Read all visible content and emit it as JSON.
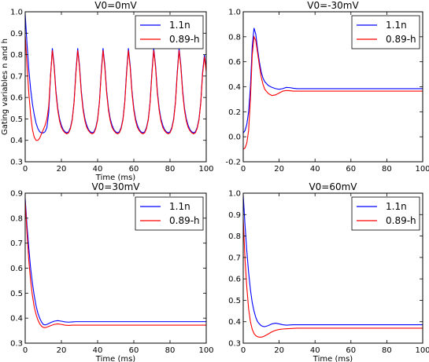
{
  "chart_data": [
    {
      "type": "line",
      "title": "V0=0mV",
      "xlabel": "Time (ms)",
      "ylabel": "Gating variables n and h",
      "xlim": [
        0,
        100
      ],
      "ylim": [
        0.3,
        1.0
      ],
      "xticks": [
        "0",
        "20",
        "40",
        "60",
        "80",
        "100"
      ],
      "yticks": [
        "0.3",
        "0.4",
        "0.5",
        "0.6",
        "0.7",
        "0.8",
        "0.9",
        "1.0"
      ],
      "legend_position": "top-right",
      "series": [
        {
          "name": "1.1n",
          "color": "#0000ff",
          "x": [
            0,
            1,
            2,
            3,
            4,
            5,
            6,
            7,
            8,
            9,
            10,
            11,
            12,
            13,
            14,
            15,
            16,
            17,
            18,
            19,
            20,
            21,
            22,
            23,
            24,
            25,
            26,
            27,
            28,
            29,
            30,
            31,
            32,
            33,
            34,
            35,
            36,
            37,
            38,
            39,
            40,
            41,
            42,
            43,
            44,
            45,
            46,
            47,
            48,
            49,
            50,
            51,
            52,
            53,
            54,
            55,
            56,
            57,
            58,
            59,
            60,
            61,
            62,
            63,
            64,
            65,
            66,
            67,
            68,
            69,
            70,
            71,
            72,
            73,
            74,
            75,
            76,
            77,
            78,
            79,
            80,
            81,
            82,
            83,
            84,
            85,
            86,
            87,
            88,
            89,
            90,
            91,
            92,
            93,
            94,
            95,
            96,
            97,
            98,
            99,
            100
          ],
          "y": [
            0.99,
            0.85,
            0.73,
            0.64,
            0.57,
            0.52,
            0.48,
            0.455,
            0.44,
            0.435,
            0.435,
            0.44,
            0.46,
            0.53,
            0.7,
            0.83,
            0.75,
            0.63,
            0.55,
            0.5,
            0.47,
            0.45,
            0.44,
            0.435,
            0.44,
            0.46,
            0.5,
            0.58,
            0.72,
            0.83,
            0.75,
            0.63,
            0.55,
            0.5,
            0.47,
            0.45,
            0.44,
            0.435,
            0.44,
            0.46,
            0.5,
            0.58,
            0.72,
            0.83,
            0.75,
            0.63,
            0.55,
            0.5,
            0.47,
            0.45,
            0.44,
            0.435,
            0.44,
            0.46,
            0.5,
            0.58,
            0.72,
            0.83,
            0.75,
            0.63,
            0.55,
            0.5,
            0.47,
            0.45,
            0.44,
            0.435,
            0.44,
            0.46,
            0.5,
            0.58,
            0.72,
            0.83,
            0.75,
            0.63,
            0.55,
            0.5,
            0.47,
            0.45,
            0.44,
            0.435,
            0.44,
            0.46,
            0.5,
            0.58,
            0.72,
            0.83,
            0.75,
            0.63,
            0.55,
            0.5,
            0.47,
            0.45,
            0.44,
            0.435,
            0.44,
            0.46,
            0.5,
            0.58,
            0.72,
            0.8,
            0.73
          ]
        },
        {
          "name": "0.89-h",
          "color": "#ff0000",
          "x": [
            0,
            1,
            2,
            3,
            4,
            5,
            6,
            7,
            8,
            9,
            10,
            11,
            12,
            13,
            14,
            15,
            16,
            17,
            18,
            19,
            20,
            21,
            22,
            23,
            24,
            25,
            26,
            27,
            28,
            29,
            30,
            31,
            32,
            33,
            34,
            35,
            36,
            37,
            38,
            39,
            40,
            41,
            42,
            43,
            44,
            45,
            46,
            47,
            48,
            49,
            50,
            51,
            52,
            53,
            54,
            55,
            56,
            57,
            58,
            59,
            60,
            61,
            62,
            63,
            64,
            65,
            66,
            67,
            68,
            69,
            70,
            71,
            72,
            73,
            74,
            75,
            76,
            77,
            78,
            79,
            80,
            81,
            82,
            83,
            84,
            85,
            86,
            87,
            88,
            89,
            90,
            91,
            92,
            93,
            94,
            95,
            96,
            97,
            98,
            99,
            100
          ],
          "y": [
            0.89,
            0.75,
            0.62,
            0.52,
            0.45,
            0.415,
            0.4,
            0.4,
            0.41,
            0.43,
            0.45,
            0.47,
            0.5,
            0.56,
            0.7,
            0.82,
            0.74,
            0.62,
            0.54,
            0.49,
            0.46,
            0.445,
            0.435,
            0.43,
            0.435,
            0.455,
            0.495,
            0.575,
            0.71,
            0.82,
            0.74,
            0.62,
            0.54,
            0.49,
            0.46,
            0.445,
            0.435,
            0.43,
            0.435,
            0.455,
            0.495,
            0.575,
            0.71,
            0.82,
            0.74,
            0.62,
            0.54,
            0.49,
            0.46,
            0.445,
            0.435,
            0.43,
            0.435,
            0.455,
            0.495,
            0.575,
            0.71,
            0.82,
            0.74,
            0.62,
            0.54,
            0.49,
            0.46,
            0.445,
            0.435,
            0.43,
            0.435,
            0.455,
            0.495,
            0.575,
            0.71,
            0.82,
            0.74,
            0.62,
            0.54,
            0.49,
            0.46,
            0.445,
            0.435,
            0.43,
            0.435,
            0.455,
            0.495,
            0.575,
            0.71,
            0.82,
            0.74,
            0.62,
            0.54,
            0.49,
            0.46,
            0.445,
            0.435,
            0.43,
            0.435,
            0.455,
            0.495,
            0.575,
            0.71,
            0.79,
            0.72
          ]
        }
      ]
    },
    {
      "type": "line",
      "title": "V0=-30mV",
      "xlabel": "",
      "ylabel": "",
      "xlim": [
        0,
        100
      ],
      "ylim": [
        -0.2,
        1.0
      ],
      "xticks": [
        "0",
        "20",
        "40",
        "60",
        "80",
        "100"
      ],
      "yticks": [
        "-0.2",
        "0.0",
        "0.2",
        "0.4",
        "0.6",
        "0.8",
        "1.0"
      ],
      "legend_position": "top-right",
      "series": [
        {
          "name": "1.1n",
          "color": "#0000ff",
          "x": [
            0,
            1,
            2,
            3,
            4,
            5,
            6,
            7,
            8,
            9,
            10,
            11,
            12,
            14,
            16,
            18,
            20,
            22,
            24,
            26,
            28,
            30,
            35,
            40,
            50,
            60,
            70,
            80,
            90,
            100
          ],
          "y": [
            0.03,
            0.05,
            0.1,
            0.2,
            0.4,
            0.72,
            0.87,
            0.82,
            0.7,
            0.6,
            0.52,
            0.47,
            0.44,
            0.41,
            0.395,
            0.385,
            0.38,
            0.385,
            0.395,
            0.393,
            0.388,
            0.385,
            0.385,
            0.385,
            0.385,
            0.385,
            0.385,
            0.385,
            0.385,
            0.385
          ]
        },
        {
          "name": "0.89-h",
          "color": "#ff0000",
          "x": [
            0,
            1,
            2,
            3,
            4,
            5,
            6,
            7,
            8,
            9,
            10,
            11,
            12,
            14,
            16,
            18,
            20,
            22,
            24,
            26,
            28,
            30,
            35,
            40,
            50,
            60,
            70,
            80,
            90,
            100
          ],
          "y": [
            -0.1,
            -0.09,
            -0.05,
            0.05,
            0.3,
            0.65,
            0.8,
            0.77,
            0.67,
            0.57,
            0.48,
            0.42,
            0.38,
            0.345,
            0.33,
            0.335,
            0.35,
            0.365,
            0.37,
            0.368,
            0.365,
            0.365,
            0.365,
            0.365,
            0.365,
            0.365,
            0.365,
            0.365,
            0.365,
            0.365
          ]
        }
      ]
    },
    {
      "type": "line",
      "title": "V0=30mV",
      "xlabel": "Time (ms)",
      "ylabel": "",
      "xlim": [
        0,
        100
      ],
      "ylim": [
        0.3,
        0.9
      ],
      "xticks": [
        "0",
        "20",
        "40",
        "60",
        "80",
        "100"
      ],
      "yticks": [
        "0.3",
        "0.4",
        "0.5",
        "0.6",
        "0.7",
        "0.8",
        "0.9"
      ],
      "legend_position": "top-right",
      "series": [
        {
          "name": "1.1n",
          "color": "#0000ff",
          "x": [
            0,
            1,
            2,
            3,
            4,
            5,
            6,
            7,
            8,
            9,
            10,
            11,
            12,
            14,
            16,
            18,
            20,
            22,
            24,
            26,
            28,
            30,
            35,
            40,
            50,
            60,
            70,
            80,
            90,
            100
          ],
          "y": [
            0.88,
            0.77,
            0.68,
            0.6,
            0.54,
            0.49,
            0.45,
            0.42,
            0.4,
            0.385,
            0.375,
            0.373,
            0.375,
            0.382,
            0.388,
            0.39,
            0.388,
            0.385,
            0.384,
            0.385,
            0.386,
            0.386,
            0.386,
            0.386,
            0.386,
            0.386,
            0.386,
            0.386,
            0.386,
            0.386
          ]
        },
        {
          "name": "0.89-h",
          "color": "#ff0000",
          "x": [
            0,
            1,
            2,
            3,
            4,
            5,
            6,
            7,
            8,
            9,
            10,
            11,
            12,
            14,
            16,
            18,
            20,
            22,
            24,
            26,
            28,
            30,
            35,
            40,
            50,
            60,
            70,
            80,
            90,
            100
          ],
          "y": [
            0.87,
            0.74,
            0.63,
            0.55,
            0.49,
            0.445,
            0.415,
            0.393,
            0.378,
            0.368,
            0.363,
            0.362,
            0.364,
            0.37,
            0.375,
            0.377,
            0.375,
            0.372,
            0.371,
            0.372,
            0.372,
            0.372,
            0.372,
            0.372,
            0.372,
            0.372,
            0.372,
            0.372,
            0.372,
            0.372
          ]
        }
      ]
    },
    {
      "type": "line",
      "title": "V0=60mV",
      "xlabel": "Time (ms)",
      "ylabel": "",
      "xlim": [
        0,
        100
      ],
      "ylim": [
        0.3,
        1.0
      ],
      "xticks": [
        "0",
        "20",
        "40",
        "60",
        "80",
        "100"
      ],
      "yticks": [
        "0.3",
        "0.4",
        "0.5",
        "0.6",
        "0.7",
        "0.8",
        "0.9",
        "1.0"
      ],
      "legend_position": "top-right",
      "series": [
        {
          "name": "1.1n",
          "color": "#0000ff",
          "x": [
            0,
            1,
            2,
            3,
            4,
            5,
            6,
            7,
            8,
            9,
            10,
            11,
            12,
            14,
            16,
            18,
            20,
            22,
            24,
            26,
            28,
            30,
            35,
            40,
            50,
            60,
            70,
            80,
            90,
            100
          ],
          "y": [
            0.99,
            0.85,
            0.73,
            0.63,
            0.55,
            0.49,
            0.45,
            0.42,
            0.4,
            0.39,
            0.382,
            0.378,
            0.377,
            0.382,
            0.39,
            0.393,
            0.39,
            0.386,
            0.384,
            0.385,
            0.386,
            0.386,
            0.386,
            0.386,
            0.386,
            0.386,
            0.386,
            0.386,
            0.386,
            0.386
          ]
        },
        {
          "name": "0.89-h",
          "color": "#ff0000",
          "x": [
            0,
            1,
            2,
            3,
            4,
            5,
            6,
            7,
            8,
            9,
            10,
            11,
            12,
            14,
            16,
            18,
            20,
            22,
            24,
            26,
            28,
            30,
            35,
            40,
            50,
            60,
            70,
            80,
            90,
            100
          ],
          "y": [
            0.88,
            0.69,
            0.56,
            0.46,
            0.4,
            0.365,
            0.345,
            0.335,
            0.33,
            0.328,
            0.328,
            0.33,
            0.334,
            0.343,
            0.353,
            0.36,
            0.364,
            0.366,
            0.367,
            0.368,
            0.369,
            0.37,
            0.37,
            0.37,
            0.37,
            0.37,
            0.37,
            0.37,
            0.37,
            0.37
          ]
        }
      ]
    }
  ]
}
